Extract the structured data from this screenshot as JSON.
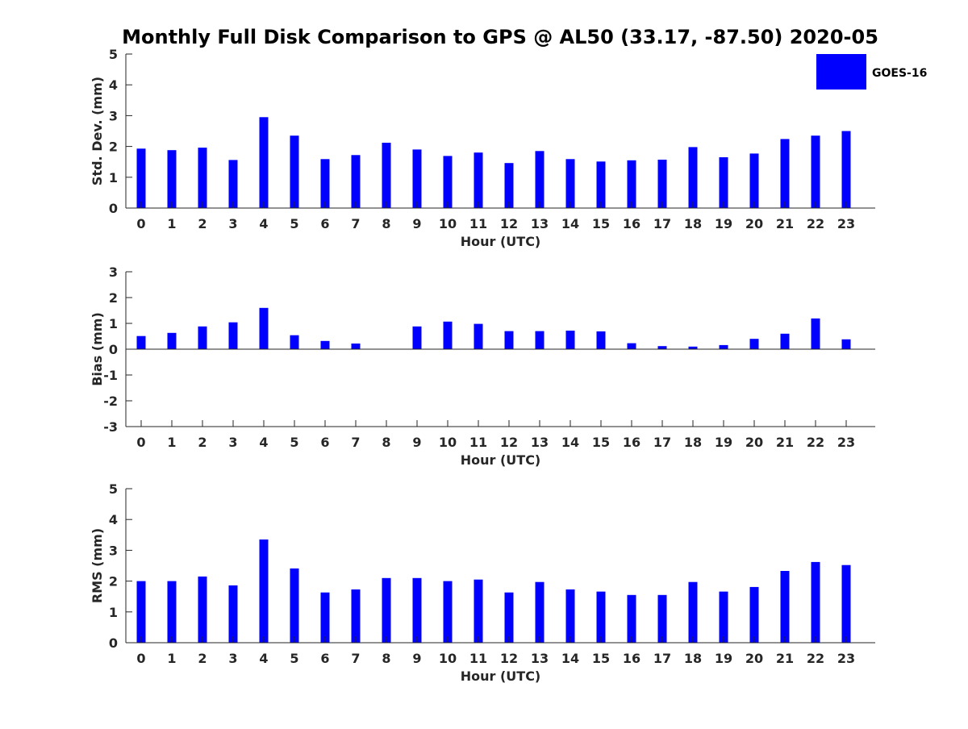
{
  "chart_data": {
    "title": "Monthly Full Disk Comparison to GPS @ AL50 (33.17, -87.50) 2020-05",
    "legend": {
      "label": "GOES-16",
      "color": "#0000ff",
      "placement": "top-right"
    },
    "panels": [
      {
        "type": "bar",
        "ylabel": "Std. Dev. (mm)",
        "xlabel": "Hour (UTC)",
        "ylim": [
          0,
          5
        ],
        "yticks": [
          0,
          1,
          2,
          3,
          4,
          5
        ],
        "categories": [
          "0",
          "1",
          "2",
          "3",
          "4",
          "5",
          "6",
          "7",
          "8",
          "9",
          "10",
          "11",
          "12",
          "13",
          "14",
          "15",
          "16",
          "17",
          "18",
          "19",
          "20",
          "21",
          "22",
          "23"
        ],
        "values": [
          1.93,
          1.88,
          1.96,
          1.56,
          2.95,
          2.35,
          1.59,
          1.72,
          2.12,
          1.9,
          1.69,
          1.8,
          1.46,
          1.85,
          1.59,
          1.51,
          1.55,
          1.57,
          1.98,
          1.65,
          1.77,
          2.24,
          2.35,
          2.5
        ],
        "color": "#0000ff",
        "grid": false
      },
      {
        "type": "bar",
        "ylabel": "Bias (mm)",
        "xlabel": "Hour (UTC)",
        "ylim": [
          -3,
          3
        ],
        "yticks": [
          -3,
          -2,
          -1,
          0,
          1,
          2,
          3
        ],
        "categories": [
          "0",
          "1",
          "2",
          "3",
          "4",
          "5",
          "6",
          "7",
          "8",
          "9",
          "10",
          "11",
          "12",
          "13",
          "14",
          "15",
          "16",
          "17",
          "18",
          "19",
          "20",
          "21",
          "22",
          "23"
        ],
        "values": [
          0.51,
          0.63,
          0.88,
          1.04,
          1.6,
          0.54,
          0.32,
          0.22,
          0.0,
          0.88,
          1.07,
          0.98,
          0.7,
          0.7,
          0.72,
          0.69,
          0.23,
          0.12,
          0.1,
          0.16,
          0.4,
          0.6,
          1.19,
          0.38
        ],
        "color": "#0000ff",
        "grid": false
      },
      {
        "type": "bar",
        "ylabel": "RMS (mm)",
        "xlabel": "Hour (UTC)",
        "ylim": [
          0,
          5
        ],
        "yticks": [
          0,
          1,
          2,
          3,
          4,
          5
        ],
        "categories": [
          "0",
          "1",
          "2",
          "3",
          "4",
          "5",
          "6",
          "7",
          "8",
          "9",
          "10",
          "11",
          "12",
          "13",
          "14",
          "15",
          "16",
          "17",
          "18",
          "19",
          "20",
          "21",
          "22",
          "23"
        ],
        "values": [
          2.0,
          2.0,
          2.15,
          1.86,
          3.35,
          2.41,
          1.63,
          1.73,
          2.1,
          2.1,
          2.0,
          2.05,
          1.63,
          1.97,
          1.73,
          1.66,
          1.55,
          1.55,
          1.97,
          1.66,
          1.81,
          2.33,
          2.62,
          2.52
        ],
        "color": "#0000ff",
        "grid": false
      }
    ]
  }
}
